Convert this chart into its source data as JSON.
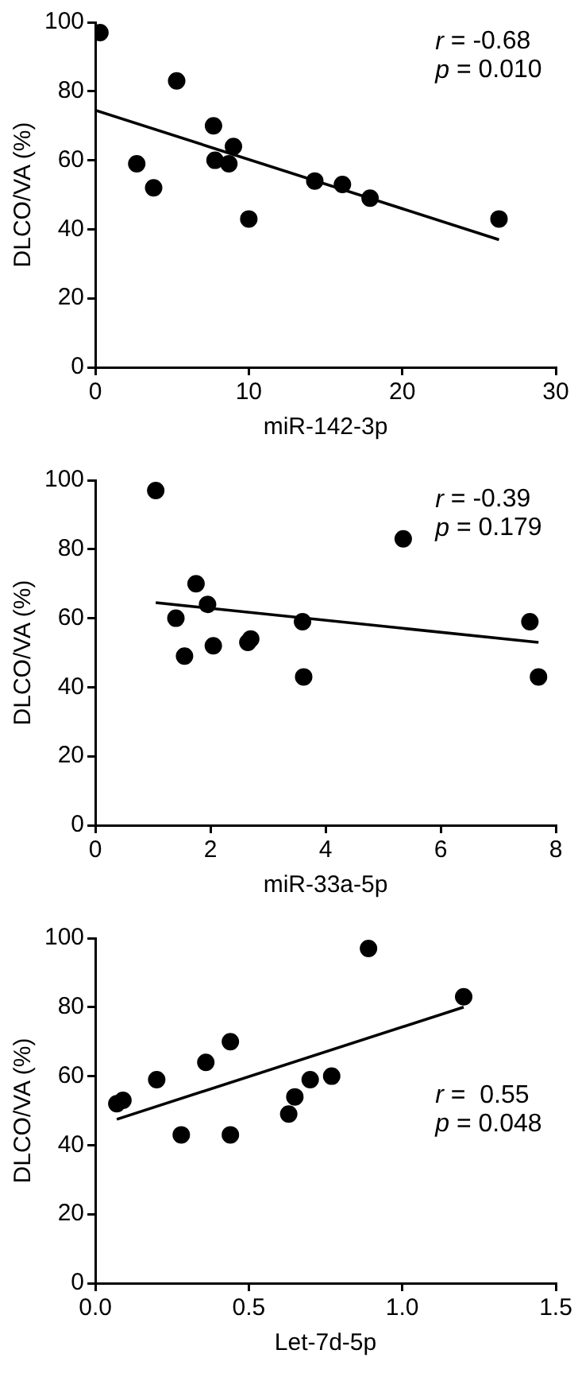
{
  "chart_data": [
    {
      "type": "scatter",
      "xlabel": "miR-142-3p",
      "ylabel": "DLCO/VA (%)",
      "annotations": [
        "r = -0.68",
        "p = 0.010"
      ],
      "xlim": [
        0,
        30
      ],
      "xticks": [
        0,
        10,
        20,
        30
      ],
      "ylim": [
        0,
        100
      ],
      "yticks": [
        0,
        20,
        40,
        60,
        80,
        100
      ],
      "grid": false,
      "legend": false,
      "series": [
        {
          "marker": "circle",
          "color": "#000000",
          "x": [
            0.3,
            2.7,
            3.8,
            5.3,
            7.7,
            7.8,
            8.7,
            9,
            10,
            14.3,
            16.1,
            17.9,
            26.3
          ],
          "values": [
            97,
            59,
            52,
            83,
            70,
            60,
            59,
            64,
            43,
            54,
            53,
            49,
            43
          ]
        },
        {
          "type": "line",
          "marker": "none",
          "color": "#000000",
          "x": [
            0,
            26.3
          ],
          "values": [
            74.5,
            37
          ]
        }
      ]
    },
    {
      "type": "scatter",
      "xlabel": "miR-33a-5p",
      "ylabel": "DLCO/VA (%)",
      "annotations": [
        "r = -0.39",
        "p = 0.179"
      ],
      "xlim": [
        0,
        8
      ],
      "xticks": [
        0,
        2,
        4,
        6,
        8
      ],
      "ylim": [
        0,
        100
      ],
      "yticks": [
        0,
        20,
        40,
        60,
        80,
        100
      ],
      "grid": false,
      "legend": false,
      "series": [
        {
          "marker": "circle",
          "color": "#000000",
          "x": [
            1.05,
            1.4,
            1.55,
            1.75,
            1.95,
            2.05,
            2.65,
            2.7,
            3.6,
            3.62,
            5.35,
            7.55,
            7.7
          ],
          "values": [
            97,
            60,
            49,
            70,
            64,
            52,
            53,
            54,
            59,
            43,
            83,
            59,
            43
          ]
        },
        {
          "type": "line",
          "marker": "none",
          "color": "#000000",
          "x": [
            1.05,
            7.7
          ],
          "values": [
            64.5,
            53
          ]
        }
      ]
    },
    {
      "type": "scatter",
      "xlabel": "Let-7d-5p",
      "ylabel": "DLCO/VA (%)",
      "annotations": [
        "r =  0.55",
        "p = 0.048"
      ],
      "xlim": [
        0,
        1.5
      ],
      "xticks": [
        {
          "value": 0,
          "label": "0.0"
        },
        {
          "value": 0.5,
          "label": "0.5"
        },
        {
          "value": 1,
          "label": "1.0"
        },
        {
          "value": 1.5,
          "label": "1.5"
        }
      ],
      "ylim": [
        0,
        100
      ],
      "yticks": [
        0,
        20,
        40,
        60,
        80,
        100
      ],
      "grid": false,
      "legend": false,
      "series": [
        {
          "marker": "circle",
          "color": "#000000",
          "x": [
            0.07,
            0.09,
            0.2,
            0.28,
            0.36,
            0.44,
            0.44,
            0.63,
            0.65,
            0.7,
            0.77,
            0.89,
            1.2
          ],
          "values": [
            52,
            53,
            59,
            43,
            64,
            70,
            43,
            49,
            54,
            59,
            60,
            97,
            83
          ]
        },
        {
          "type": "line",
          "marker": "none",
          "color": "#000000",
          "x": [
            0.07,
            1.2
          ],
          "values": [
            47.5,
            80
          ]
        }
      ]
    }
  ]
}
